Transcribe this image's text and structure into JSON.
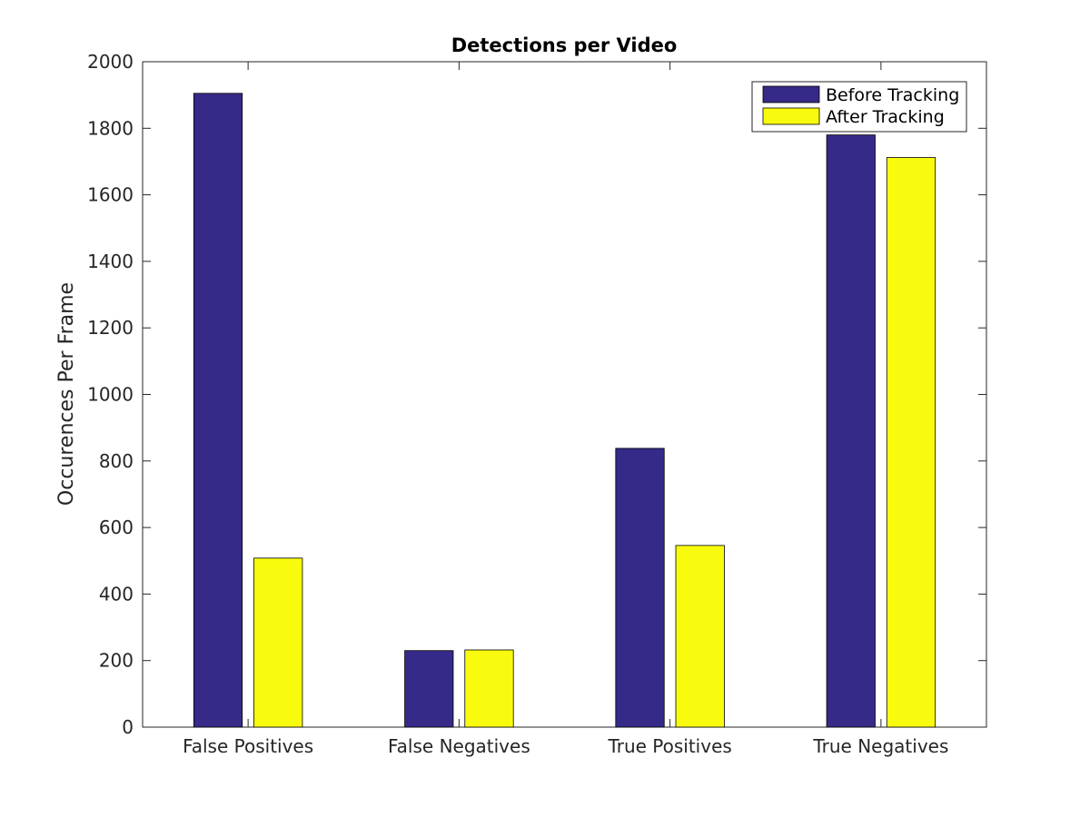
{
  "chart_data": {
    "type": "bar",
    "title": "Detections per Video",
    "xlabel": "",
    "ylabel": "Occurences Per Frame",
    "categories": [
      "False Positives",
      "False Negatives",
      "True Positives",
      "True Negatives"
    ],
    "series": [
      {
        "name": "Before Tracking",
        "color": "#352A87",
        "values": [
          1905,
          230,
          838,
          1780
        ]
      },
      {
        "name": "After Tracking",
        "color": "#F9FB0E",
        "values": [
          508,
          232,
          546,
          1712
        ]
      }
    ],
    "ylim": [
      0,
      2000
    ],
    "yticks": [
      0,
      200,
      400,
      600,
      800,
      1000,
      1200,
      1400,
      1600,
      1800,
      2000
    ],
    "yticklabels": [
      "0",
      "200",
      "400",
      "600",
      "800",
      "1000",
      "1200",
      "1400",
      "1600",
      "1800",
      "2000"
    ],
    "grid": false,
    "legend_position": "top-right"
  }
}
